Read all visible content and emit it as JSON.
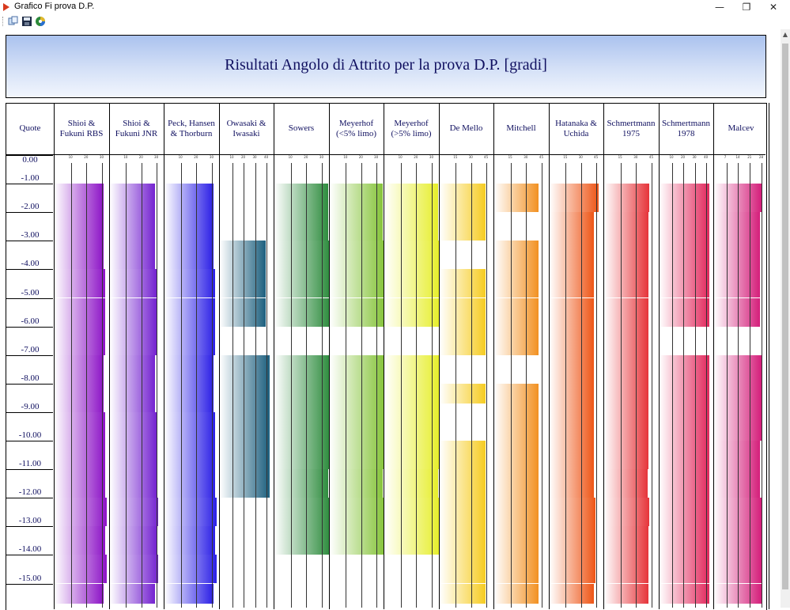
{
  "window": {
    "title": "Grafico Fi prova D.P.",
    "controls": [
      "minimize",
      "restore",
      "close"
    ]
  },
  "toolbar": {
    "buttons": [
      {
        "name": "copy-button",
        "icon": "copy-icon"
      },
      {
        "name": "save-button",
        "icon": "floppy-disk-icon"
      },
      {
        "name": "color-button",
        "icon": "color-palette-icon"
      }
    ]
  },
  "chart_title": "Risultati Angolo di Attrito per la prova D.P. [gradi]",
  "depth_header": "Quote",
  "depth_labels": [
    "0.00",
    "-1.00",
    "-2.00",
    "-3.00",
    "-4.00",
    "-5.00",
    "-6.00",
    "-7.00",
    "-8.00",
    "-9.00",
    "-10.00",
    "-11.00",
    "-12.00",
    "-13.00",
    "-14.00",
    "-15.00"
  ],
  "chart_data": {
    "type": "bar",
    "orientation": "horizontal-profile",
    "depth_step_m": 1.0,
    "columns": [
      {
        "name": "Shioi & Fukuni RBS",
        "color": "#8c12c6",
        "ticks": [
          10,
          20,
          30
        ],
        "segments": [
          [
            1,
            15.7
          ]
        ],
        "profile": [
          31,
          31,
          31,
          32,
          32,
          32,
          31,
          31,
          32,
          32,
          32,
          33,
          32,
          33,
          31
        ]
      },
      {
        "name": "Shioi & Fukuni JNR",
        "color": "#7422d0",
        "ticks": [
          10,
          20,
          30
        ],
        "segments": [
          [
            1,
            15.7
          ]
        ],
        "profile": [
          29,
          29,
          29,
          30,
          30,
          30,
          29,
          29,
          30,
          30,
          30,
          31,
          30,
          31,
          29
        ]
      },
      {
        "name": "Peck, Hansen & Thorburn",
        "color": "#2a1ee6",
        "ticks": [
          10,
          20,
          30
        ],
        "segments": [
          [
            1,
            15.7
          ]
        ],
        "profile": [
          31,
          31,
          31,
          32,
          32,
          32,
          31,
          31,
          32,
          32,
          32,
          33,
          32,
          33,
          31
        ]
      },
      {
        "name": "Owasaki & Iwasaki",
        "color": "#1c5f7e",
        "ticks": [
          10,
          20,
          30,
          40
        ],
        "segments": [
          [
            3,
            6
          ],
          [
            7,
            12
          ]
        ],
        "profile": [
          0,
          0,
          39,
          39,
          39,
          0,
          43,
          43,
          43,
          43,
          43,
          43,
          0,
          0,
          0
        ]
      },
      {
        "name": "Sowers",
        "color": "#2e8c3e",
        "ticks": [
          10,
          20,
          30
        ],
        "segments": [
          [
            1,
            6
          ],
          [
            7,
            14
          ]
        ],
        "profile": [
          34,
          34,
          35,
          35,
          35,
          0,
          35,
          35,
          35,
          35,
          34,
          35,
          35,
          35,
          0
        ]
      },
      {
        "name": "Meyerhof (<5% limo)",
        "color": "#86c43a",
        "ticks": [
          10,
          20,
          30
        ],
        "segments": [
          [
            1,
            6
          ],
          [
            7,
            14
          ]
        ],
        "profile": [
          34,
          34,
          35,
          35,
          35,
          0,
          35,
          35,
          35,
          35,
          34,
          35,
          35,
          35,
          0
        ]
      },
      {
        "name": "Meyerhof (>5% limo)",
        "color": "#e6ee2a",
        "ticks": [
          10,
          20,
          30
        ],
        "segments": [
          [
            1,
            6
          ],
          [
            7,
            14
          ]
        ],
        "profile": [
          34,
          34,
          35,
          35,
          35,
          0,
          35,
          35,
          35,
          35,
          34,
          35,
          35,
          35,
          0
        ]
      },
      {
        "name": "De Mello",
        "color": "#f6cc22",
        "ticks": [
          15,
          30,
          45
        ],
        "segments": [
          [
            1,
            3
          ],
          [
            4,
            7
          ],
          [
            8,
            8.7
          ],
          [
            9,
            15.7
          ]
        ],
        "profile": [
          44,
          44,
          0,
          44,
          44,
          44,
          0,
          44,
          0,
          44,
          44,
          44,
          44,
          44,
          44
        ]
      },
      {
        "name": "Mitchell",
        "color": "#f29122",
        "ticks": [
          15,
          30,
          45
        ],
        "segments": [
          [
            1,
            2
          ],
          [
            3,
            7
          ],
          [
            8,
            15.7
          ]
        ],
        "profile": [
          42,
          0,
          42,
          42,
          42,
          42,
          0,
          42,
          42,
          42,
          42,
          42,
          42,
          42,
          42
        ]
      },
      {
        "name": "Hatanaka & Uchida",
        "color": "#ee5516",
        "ticks": [
          15,
          30,
          45
        ],
        "segments": [
          [
            1,
            15.7
          ]
        ],
        "profile": [
          47,
          43,
          43,
          43,
          43,
          43,
          43,
          43,
          43,
          43,
          43,
          44,
          44,
          44,
          43
        ]
      },
      {
        "name": "Schmertmann 1975",
        "color": "#e6343a",
        "ticks": [
          15,
          30,
          45
        ],
        "segments": [
          [
            1,
            15.7
          ]
        ],
        "profile": [
          43,
          42,
          42,
          42,
          42,
          42,
          42,
          42,
          42,
          42,
          41,
          43,
          42,
          42,
          42
        ]
      },
      {
        "name": "Schmertmann 1978",
        "color": "#e2285c",
        "ticks": [
          10,
          20,
          30,
          40
        ],
        "segments": [
          [
            1,
            6
          ],
          [
            7,
            15.7
          ]
        ],
        "profile": [
          43,
          43,
          43,
          43,
          43,
          0,
          43,
          43,
          43,
          43,
          43,
          43,
          43,
          43,
          43
        ]
      },
      {
        "name": "Malcev",
        "color": "#d41e7a",
        "ticks": [
          7,
          14,
          21,
          28
        ],
        "segments": [
          [
            1,
            6
          ],
          [
            7,
            15.7
          ]
        ],
        "profile": [
          28,
          27,
          27,
          27,
          27,
          0,
          28,
          28,
          28,
          27,
          27,
          28,
          28,
          28,
          28
        ]
      }
    ]
  }
}
